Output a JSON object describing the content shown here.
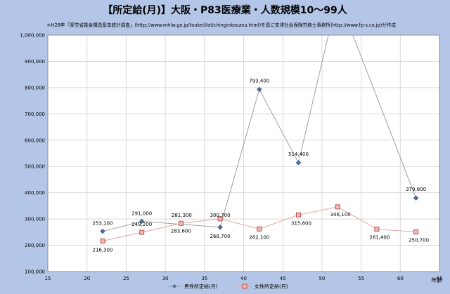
{
  "chart_data": {
    "type": "line",
    "title": "【所定給(月)】大阪・P83医療業・人数規模10～99人",
    "subtitle": "＊H28年「厚労省賃金構造基本統計調査」(http://www.mhlw.go.jp/toukei/list/chinginkouzou.html)を基に安達社会保険労務士事務所(http://www.fp-s.co.jp)が作成",
    "xlabel": "年齢",
    "ylabel": "",
    "xlim": [
      15,
      65
    ],
    "ylim": [
      100000,
      1000000
    ],
    "x_ticks": [
      15,
      20,
      25,
      30,
      35,
      40,
      45,
      50,
      55,
      60,
      65
    ],
    "x_tick_labels": [
      "15",
      "20",
      "25",
      "30",
      "35",
      "40",
      "45",
      "50",
      "55",
      "60",
      "65"
    ],
    "y_ticks": [
      100000,
      200000,
      300000,
      400000,
      500000,
      600000,
      700000,
      800000,
      900000,
      1000000
    ],
    "y_tick_labels": [
      "100,000",
      "200,000",
      "300,000",
      "400,000",
      "500,000",
      "600,000",
      "700,000",
      "800,000",
      "900,000",
      "1,000,000"
    ],
    "grid": true,
    "legend_position": "bottom",
    "series": [
      {
        "name": "男性所定給(月)",
        "color": "#4f6f9a",
        "marker": "diamond",
        "x": [
          22,
          27,
          37,
          42,
          47,
          52,
          62
        ],
        "y": [
          253100,
          291000,
          268700,
          793400,
          514400,
          1150000,
          379800
        ],
        "labels": [
          "253,100",
          "291,000",
          "268,700",
          "793,400",
          "514,400",
          "",
          "379,800"
        ]
      },
      {
        "name": "女性所定給(月)",
        "color": "#c0504d",
        "marker": "square",
        "x": [
          22,
          27,
          32,
          37,
          42,
          47,
          52,
          57,
          62
        ],
        "y": [
          216300,
          249200,
          283600,
          300700,
          262100,
          315600,
          346100,
          261400,
          250700
        ],
        "labels": [
          "216,300",
          "249,200",
          "283,600",
          "300,700",
          "262,100",
          "315,600",
          "346,100",
          "261,400",
          "250,700"
        ]
      }
    ],
    "extra_labels": [
      "281,300"
    ]
  }
}
